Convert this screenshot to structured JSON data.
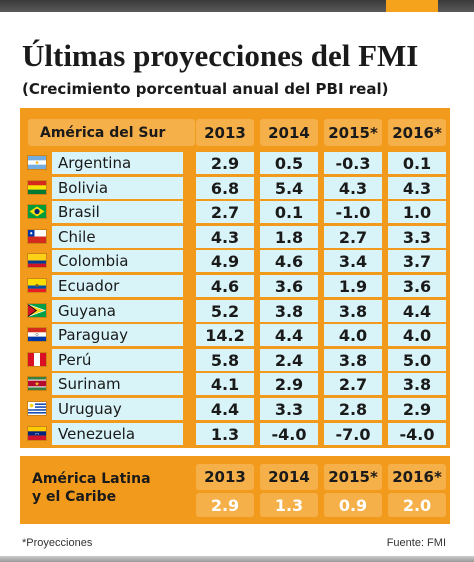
{
  "title": "Últimas proyecciones del FMI",
  "subtitle": "(Crecimiento porcentual anual del PBI real)",
  "table": {
    "region_header": "América del Sur",
    "years": [
      "2013",
      "2014",
      "2015*",
      "2016*"
    ],
    "rows": [
      {
        "country": "Argentina",
        "flag": "argentina-flag-icon",
        "values": [
          "2.9",
          "0.5",
          "-0.3",
          "0.1"
        ]
      },
      {
        "country": "Bolivia",
        "flag": "bolivia-flag-icon",
        "values": [
          "6.8",
          "5.4",
          "4.3",
          "4.3"
        ]
      },
      {
        "country": "Brasil",
        "flag": "brazil-flag-icon",
        "values": [
          "2.7",
          "0.1",
          "-1.0",
          "1.0"
        ]
      },
      {
        "country": "Chile",
        "flag": "chile-flag-icon",
        "values": [
          "4.3",
          "1.8",
          "2.7",
          "3.3"
        ]
      },
      {
        "country": "Colombia",
        "flag": "colombia-flag-icon",
        "values": [
          "4.9",
          "4.6",
          "3.4",
          "3.7"
        ]
      },
      {
        "country": "Ecuador",
        "flag": "ecuador-flag-icon",
        "values": [
          "4.6",
          "3.6",
          "1.9",
          "3.6"
        ]
      },
      {
        "country": "Guyana",
        "flag": "guyana-flag-icon",
        "values": [
          "5.2",
          "3.8",
          "3.8",
          "4.4"
        ]
      },
      {
        "country": "Paraguay",
        "flag": "paraguay-flag-icon",
        "values": [
          "14.2",
          "4.4",
          "4.0",
          "4.0"
        ]
      },
      {
        "country": "Perú",
        "flag": "peru-flag-icon",
        "values": [
          "5.8",
          "2.4",
          "3.8",
          "5.0"
        ]
      },
      {
        "country": "Surinam",
        "flag": "suriname-flag-icon",
        "values": [
          "4.1",
          "2.9",
          "2.7",
          "3.8"
        ]
      },
      {
        "country": "Uruguay",
        "flag": "uruguay-flag-icon",
        "values": [
          "4.4",
          "3.3",
          "2.8",
          "2.9"
        ]
      },
      {
        "country": "Venezuela",
        "flag": "venezuela-flag-icon",
        "values": [
          "1.3",
          "-4.0",
          "-7.0",
          "-4.0"
        ]
      }
    ]
  },
  "summary": {
    "label_line1": "América Latina",
    "label_line2": "y el Caribe",
    "years": [
      "2013",
      "2014",
      "2015*",
      "2016*"
    ],
    "values": [
      "2.9",
      "1.3",
      "0.9",
      "2.0"
    ]
  },
  "footnote": "*Proyecciones",
  "source": "Fuente: FMI",
  "colors": {
    "accent": "#f29a1b",
    "header_cell": "#f6b04a",
    "data_cell": "#d8f4f8"
  }
}
